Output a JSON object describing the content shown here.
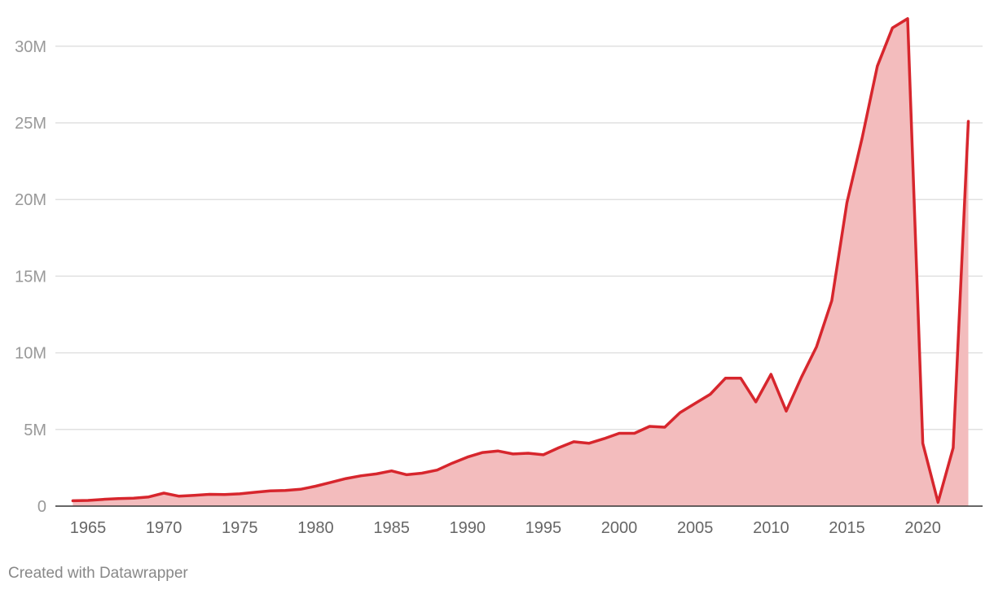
{
  "chart_data": {
    "type": "area",
    "title": "",
    "xlabel": "",
    "ylabel": "",
    "xlim": [
      1963,
      2024
    ],
    "ylim": [
      0,
      32000000
    ],
    "grid": true,
    "x_ticks": [
      1965,
      1970,
      1975,
      1980,
      1985,
      1990,
      1995,
      2000,
      2005,
      2010,
      2015,
      2020
    ],
    "x_tick_labels": [
      "1965",
      "1970",
      "1975",
      "1980",
      "1985",
      "1990",
      "1995",
      "2000",
      "2005",
      "2010",
      "2015",
      "2020"
    ],
    "y_ticks": [
      0,
      5000000,
      10000000,
      15000000,
      20000000,
      25000000,
      30000000
    ],
    "y_tick_labels": [
      "0",
      "5M",
      "10M",
      "15M",
      "20M",
      "25M",
      "30M"
    ],
    "x": [
      1964,
      1965,
      1966,
      1967,
      1968,
      1969,
      1970,
      1971,
      1972,
      1973,
      1974,
      1975,
      1976,
      1977,
      1978,
      1979,
      1980,
      1981,
      1982,
      1983,
      1984,
      1985,
      1986,
      1987,
      1988,
      1989,
      1990,
      1991,
      1992,
      1993,
      1994,
      1995,
      1996,
      1997,
      1998,
      1999,
      2000,
      2001,
      2002,
      2003,
      2004,
      2005,
      2006,
      2007,
      2008,
      2009,
      2010,
      2011,
      2012,
      2013,
      2014,
      2015,
      2016,
      2017,
      2018,
      2019,
      2020,
      2021,
      2022,
      2023
    ],
    "series": [
      {
        "values": [
          350000,
          370000,
          440000,
          490000,
          520000,
          600000,
          850000,
          650000,
          700000,
          770000,
          760000,
          800000,
          900000,
          1000000,
          1020000,
          1100000,
          1300000,
          1550000,
          1800000,
          1980000,
          2100000,
          2300000,
          2050000,
          2150000,
          2350000,
          2800000,
          3200000,
          3500000,
          3600000,
          3400000,
          3450000,
          3350000,
          3800000,
          4200000,
          4100000,
          4400000,
          4750000,
          4750000,
          5200000,
          5150000,
          6100000,
          6700000,
          7300000,
          8350000,
          8350000,
          6800000,
          8600000,
          6200000,
          8400000,
          10400000,
          13400000,
          19800000,
          24000000,
          28700000,
          31200000,
          31800000,
          4100000,
          250000,
          3800000,
          25100000
        ]
      }
    ],
    "colors": {
      "line": "#d7262d",
      "fill": "#f3bcbd",
      "grid": "#e0e0e0",
      "axis": "#333333"
    }
  },
  "footer": {
    "credit": "Created with Datawrapper"
  }
}
